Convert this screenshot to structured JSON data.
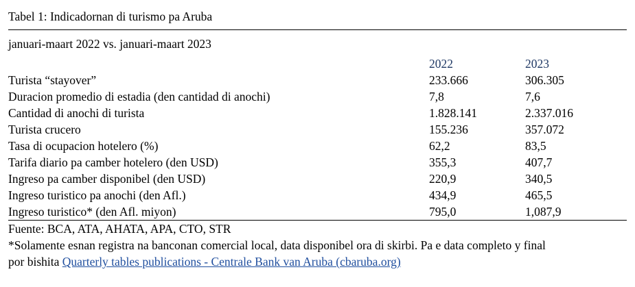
{
  "table": {
    "title": "Tabel 1: Indicadornan di turismo pa Aruba",
    "subtitle": "januari-maart 2022 vs. januari-maart 2023",
    "header_color": "#1f3864",
    "columns": [
      "2022",
      "2023"
    ],
    "rows": [
      {
        "label": "Turista “stayover”",
        "v2022": "233.666",
        "v2023": "306.305"
      },
      {
        "label": "Duracion promedio di estadia (den cantidad di anochi)",
        "v2022": "7,8",
        "v2023": "7,6"
      },
      {
        "label": "Cantidad di anochi di turista",
        "v2022": "1.828.141",
        "v2023": "2.337.016"
      },
      {
        "label": "Turista crucero",
        "v2022": "155.236",
        "v2023": "357.072"
      },
      {
        "label": "Tasa di ocupacion hotelero (%)",
        "v2022": "62,2",
        "v2023": "83,5"
      },
      {
        "label": "Tarifa diario pa camber hotelero (den USD)",
        "v2022": "355,3",
        "v2023": "407,7"
      },
      {
        "label": "Ingreso pa camber disponibel (den USD)",
        "v2022": "220,9",
        "v2023": "340,5"
      },
      {
        "label": "Ingreso turistico pa anochi (den Afl.)",
        "v2022": "434,9",
        "v2023": "465,5"
      },
      {
        "label": "Ingreso turistico* (den Afl. miyon)",
        "v2022": "795,0",
        "v2023": "1,087,9"
      }
    ]
  },
  "footer": {
    "source": "Fuente: BCA, ATA, AHATA, APA, CTO, STR",
    "note_line1": "*Solamente esnan registra na banconan comercial local, data disponibel ora di skirbi. Pa e data completo y final",
    "note_prefix": "por bishita ",
    "link_text": "Quarterly tables publications - Centrale Bank van Aruba (cbaruba.org)",
    "link_color": "#1f4e9e"
  }
}
